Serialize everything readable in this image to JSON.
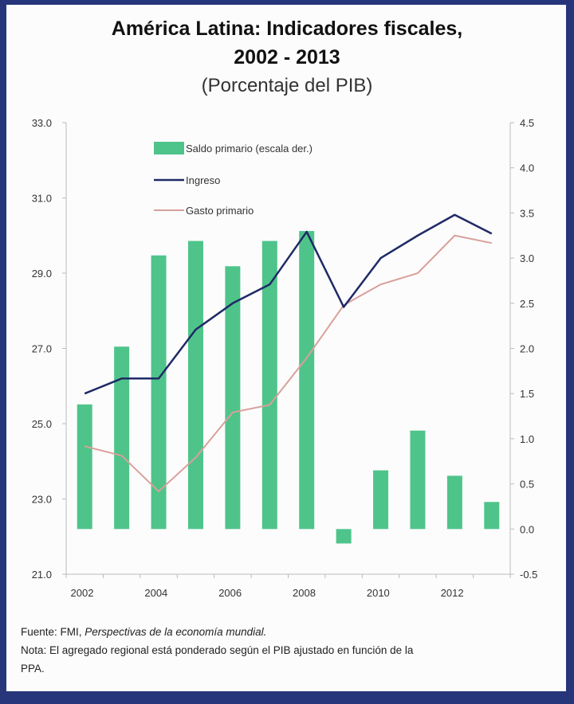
{
  "title_line1": "América Latina:  Indicadores fiscales,",
  "title_line2": "2002 - 2013",
  "subtitle": "(Porcentaje del PIB)",
  "source_label": "Fuente: FMI,",
  "source_title": "Perspectivas de la economía mundial.",
  "note_line1": "Nota: El agregado regional está ponderado según el PIB ajustado en función de la",
  "note_line2": "PPA.",
  "colors": {
    "bar": "#4fc48a",
    "ingreso": "#1f2a66",
    "gasto": "#d9a09a",
    "frame": "#27357a"
  },
  "chart_data": {
    "type": "bar+line",
    "title": "América Latina: Indicadores fiscales, 2002 - 2013",
    "subtitle": "(Porcentaje del PIB)",
    "categories": [
      2002,
      2003,
      2004,
      2005,
      2006,
      2007,
      2008,
      2009,
      2010,
      2011,
      2012,
      2013
    ],
    "x_tick_labels": [
      "2002",
      "2004",
      "2006",
      "2008",
      "2010",
      "2012"
    ],
    "y_left": {
      "range": [
        21,
        33
      ],
      "ticks": [
        "21.0",
        "23.0",
        "25.0",
        "27.0",
        "29.0",
        "31.0",
        "33.0"
      ]
    },
    "y_right": {
      "range": [
        -0.5,
        4.5
      ],
      "ticks": [
        "-0.5",
        "0.0",
        "0.5",
        "1.0",
        "1.5",
        "2.0",
        "2.5",
        "3.0",
        "3.5",
        "4.0",
        "4.5"
      ]
    },
    "legend_position": "top-left",
    "series": [
      {
        "name": "Saldo primario (escala der.)",
        "type": "bar",
        "axis": "right",
        "values": [
          1.38,
          2.02,
          3.03,
          3.19,
          2.91,
          3.19,
          3.3,
          -0.16,
          0.65,
          1.09,
          0.59,
          0.3
        ]
      },
      {
        "name": "Ingreso",
        "type": "line",
        "axis": "left",
        "values": [
          25.8,
          26.2,
          26.2,
          27.5,
          28.2,
          28.7,
          30.1,
          28.1,
          29.4,
          30.0,
          30.55,
          30.05
        ]
      },
      {
        "name": "Gasto primario",
        "type": "line",
        "axis": "left",
        "values": [
          24.4,
          24.15,
          23.2,
          24.1,
          25.3,
          25.5,
          26.75,
          28.15,
          28.7,
          29.0,
          30.0,
          29.8
        ]
      }
    ]
  }
}
